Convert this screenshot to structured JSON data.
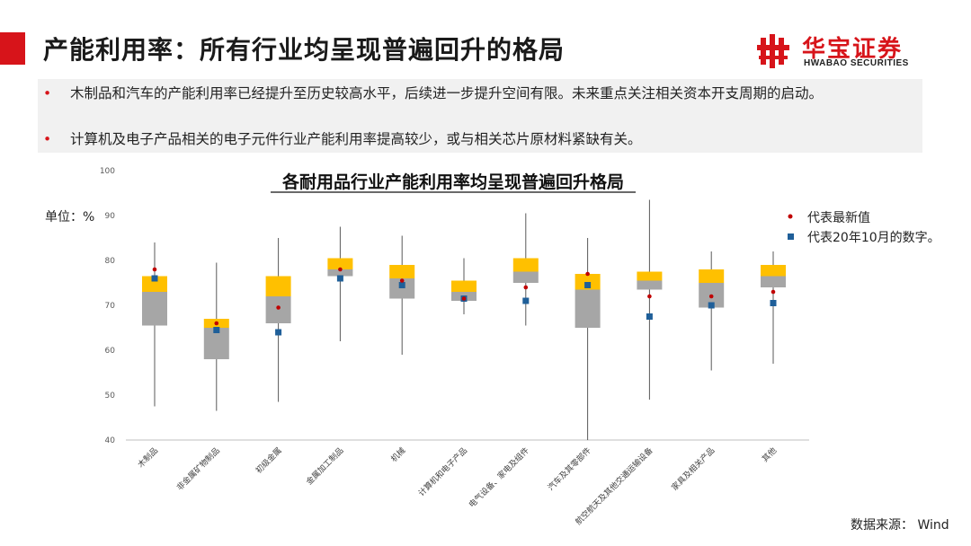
{
  "slide": {
    "title": "产能利用率：所有行业均呈现普遍回升的格局",
    "bullets": [
      "木制品和汽车的产能利用率已经提升至历史较高水平，后续进一步提升空间有限。未来重点关注相关资本开支周期的启动。",
      "计算机及电子产品相关的电子元件行业产能利用率提高较少，或与相关芯片原材料紧缺有关。"
    ],
    "unit_label": "单位：%",
    "source": "数据来源： Wind",
    "accent_color": "#d7141a"
  },
  "logo": {
    "name_cn": "华宝证券",
    "name_en": "HWABAO SECURITIES",
    "icon": "hwabao-logo-icon"
  },
  "legend": {
    "items": [
      {
        "label": "代表最新值",
        "marker": "dot",
        "color": "#c00000"
      },
      {
        "label": "代表20年10月的数字。",
        "marker": "square",
        "color": "#1f5f99"
      }
    ]
  },
  "chart_data": {
    "type": "box",
    "title": "各耐用品行业产能利用率均呈现普遍回升格局",
    "ylim": [
      40,
      100
    ],
    "yticks": [
      40,
      50,
      60,
      70,
      80,
      90,
      100
    ],
    "grid": false,
    "legend_position": "right",
    "colors": {
      "lower_box": "#a6a6a6",
      "upper_box": "#ffc000",
      "whisker": "#595959",
      "latest": "#c00000",
      "oct2020": "#1f5f99"
    },
    "categories": [
      "木制品",
      "非金属矿物制品",
      "初级金属",
      "金属加工制品",
      "机械",
      "计算机和电子产品",
      "电气设备、家电及组件",
      "汽车及其零部件",
      "航空航天及其他交通运输设备",
      "家具及相关产品",
      "其他"
    ],
    "min": [
      47.5,
      46.5,
      48.5,
      62.0,
      59.0,
      68.0,
      65.5,
      40.0,
      49.0,
      55.5,
      57.0
    ],
    "q1": [
      65.5,
      58.0,
      66.0,
      76.5,
      71.5,
      71.0,
      75.0,
      65.0,
      73.5,
      69.5,
      74.0
    ],
    "median": [
      73.0,
      65.0,
      72.0,
      78.0,
      76.0,
      73.0,
      77.5,
      73.5,
      75.5,
      75.0,
      76.5
    ],
    "q3": [
      76.5,
      67.0,
      76.5,
      80.5,
      79.0,
      75.5,
      80.5,
      77.0,
      77.5,
      78.0,
      79.0
    ],
    "max": [
      84.0,
      79.5,
      85.0,
      87.5,
      85.5,
      80.5,
      90.5,
      85.0,
      93.5,
      82.0,
      82.0
    ],
    "latest": [
      78.0,
      66.0,
      69.5,
      78.0,
      75.5,
      71.5,
      74.0,
      77.0,
      72.0,
      72.0,
      73.0
    ],
    "oct_2020": [
      76.0,
      64.5,
      64.0,
      76.0,
      74.5,
      71.5,
      71.0,
      74.5,
      67.5,
      70.0,
      70.5
    ]
  }
}
